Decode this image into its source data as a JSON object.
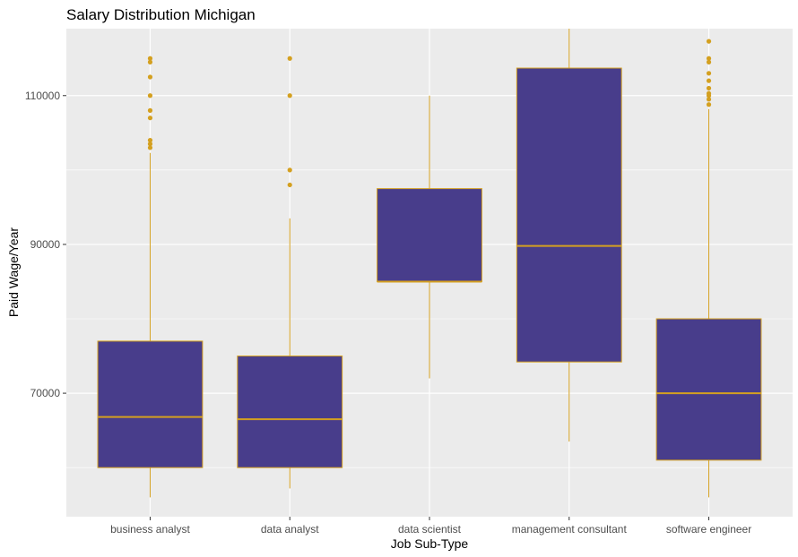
{
  "chart_data": {
    "type": "boxplot",
    "title": "Salary Distribution Michigan",
    "xlabel": "Job Sub-Type",
    "ylabel": "Paid Wage/Year",
    "ylim": [
      53400,
      119000
    ],
    "yticks": [
      70000,
      90000,
      110000
    ],
    "ytick_labels": [
      "70000",
      "90000",
      "110000"
    ],
    "grid": true,
    "colors": {
      "fill": "#483d8b",
      "line": "#d4a020",
      "panel": "#ebebeb",
      "grid": "#ffffff"
    },
    "categories": [
      "business analyst",
      "data analyst",
      "data scientist",
      "management consultant",
      "software engineer"
    ],
    "boxes": [
      {
        "category": "business analyst",
        "whisker_low": 56000,
        "q1": 60000,
        "median": 66800,
        "q3": 77000,
        "whisker_high": 102300,
        "outliers": [
          103000,
          103500,
          104000,
          107000,
          108000,
          110000,
          112500,
          114500,
          115000,
          120000
        ]
      },
      {
        "category": "data analyst",
        "whisker_low": 57200,
        "q1": 60000,
        "median": 66500,
        "q3": 75000,
        "whisker_high": 93500,
        "outliers": [
          98000,
          100000,
          110000,
          115000
        ]
      },
      {
        "category": "data scientist",
        "whisker_low": 72000,
        "q1": 85000,
        "median": 85000,
        "q3": 97500,
        "whisker_high": 110000,
        "outliers": []
      },
      {
        "category": "management consultant",
        "whisker_low": 63500,
        "q1": 74200,
        "median": 89800,
        "q3": 113700,
        "whisker_high": 124500,
        "outliers": []
      },
      {
        "category": "software engineer",
        "whisker_low": 56000,
        "q1": 61000,
        "median": 70000,
        "q3": 80000,
        "whisker_high": 108200,
        "outliers": [
          108800,
          109500,
          110000,
          110300,
          111000,
          112000,
          113000,
          114500,
          115000,
          117300,
          120000,
          121000
        ]
      }
    ]
  }
}
